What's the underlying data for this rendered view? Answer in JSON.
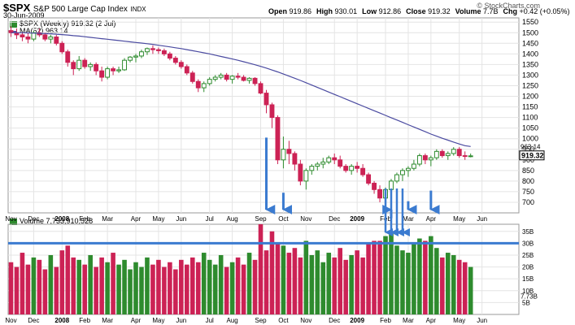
{
  "header": {
    "symbol": "$SPX",
    "name": "S&P 500 Large Cap Index",
    "exchange": "INDX",
    "date": "30-Jun-2009",
    "credit": "© StockCharts.com",
    "quote": [
      {
        "label": "Open",
        "value": "919.86"
      },
      {
        "label": "High",
        "value": "930.01"
      },
      {
        "label": "Low",
        "value": "912.86"
      },
      {
        "label": "Close",
        "value": "919.32"
      },
      {
        "label": "Volume",
        "value": "7.7B"
      },
      {
        "label": "Chg",
        "value": "+0.42 (+0.05%)"
      }
    ]
  },
  "legend": {
    "price": "$SPX (Weekly) 919.32 (2 Jul)",
    "ma": "MA(52) 963.14",
    "volume": "Volume 7,733,910,528"
  },
  "colors": {
    "up": "#2e8b2e",
    "down": "#cc2255",
    "ma": "#4a4aa0",
    "arrow": "#3b7bd0",
    "grid": "#e4e4e4"
  },
  "chart_data": {
    "type": "candlestick",
    "y_ticks": [
      700,
      750,
      800,
      850,
      900,
      950,
      1000,
      1050,
      1100,
      1150,
      1200,
      1250,
      1300,
      1350,
      1400,
      1450,
      1500,
      1550
    ],
    "ylim": [
      650,
      1570
    ],
    "x_labels": [
      "Nov",
      "Dec",
      "2008",
      "Feb",
      "Mar",
      "Apr",
      "May",
      "Jun",
      "Jul",
      "Aug",
      "Sep",
      "Oct",
      "Nov",
      "Dec",
      "2009",
      "Feb",
      "Mar",
      "Apr",
      "May",
      "Jun"
    ],
    "x_label_weeks": [
      0,
      4,
      9,
      13,
      17,
      22,
      26,
      30,
      35,
      39,
      44,
      48,
      52,
      57,
      61,
      66,
      70,
      74,
      79,
      83
    ],
    "weeks": 90,
    "price_labels": {
      "ma": "963.14",
      "close": "919.32"
    },
    "ohlc": [
      [
        1510,
        1530,
        1480,
        1500
      ],
      [
        1500,
        1520,
        1470,
        1490
      ],
      [
        1490,
        1500,
        1460,
        1480
      ],
      [
        1480,
        1500,
        1450,
        1470
      ],
      [
        1470,
        1510,
        1460,
        1500
      ],
      [
        1500,
        1520,
        1480,
        1490
      ],
      [
        1490,
        1500,
        1460,
        1470
      ],
      [
        1470,
        1490,
        1450,
        1480
      ],
      [
        1480,
        1490,
        1440,
        1450
      ],
      [
        1450,
        1460,
        1400,
        1410
      ],
      [
        1410,
        1420,
        1340,
        1360
      ],
      [
        1360,
        1370,
        1300,
        1330
      ],
      [
        1330,
        1390,
        1320,
        1370
      ],
      [
        1370,
        1380,
        1330,
        1340
      ],
      [
        1340,
        1360,
        1320,
        1350
      ],
      [
        1350,
        1360,
        1300,
        1320
      ],
      [
        1320,
        1340,
        1270,
        1290
      ],
      [
        1290,
        1340,
        1280,
        1330
      ],
      [
        1330,
        1340,
        1300,
        1320
      ],
      [
        1320,
        1340,
        1310,
        1325
      ],
      [
        1325,
        1380,
        1320,
        1370
      ],
      [
        1370,
        1390,
        1360,
        1385
      ],
      [
        1385,
        1400,
        1360,
        1390
      ],
      [
        1390,
        1420,
        1380,
        1410
      ],
      [
        1410,
        1430,
        1395,
        1425
      ],
      [
        1425,
        1440,
        1400,
        1420
      ],
      [
        1420,
        1430,
        1400,
        1415
      ],
      [
        1415,
        1425,
        1390,
        1400
      ],
      [
        1400,
        1410,
        1370,
        1380
      ],
      [
        1380,
        1390,
        1350,
        1360
      ],
      [
        1360,
        1370,
        1330,
        1340
      ],
      [
        1340,
        1350,
        1300,
        1310
      ],
      [
        1310,
        1320,
        1260,
        1270
      ],
      [
        1270,
        1280,
        1220,
        1240
      ],
      [
        1240,
        1270,
        1220,
        1260
      ],
      [
        1260,
        1290,
        1250,
        1280
      ],
      [
        1280,
        1300,
        1270,
        1290
      ],
      [
        1290,
        1310,
        1280,
        1300
      ],
      [
        1300,
        1310,
        1270,
        1280
      ],
      [
        1280,
        1300,
        1260,
        1295
      ],
      [
        1295,
        1310,
        1280,
        1290
      ],
      [
        1290,
        1300,
        1270,
        1275
      ],
      [
        1275,
        1290,
        1260,
        1285
      ],
      [
        1285,
        1290,
        1250,
        1260
      ],
      [
        1260,
        1270,
        1210,
        1215
      ],
      [
        1215,
        1230,
        1120,
        1160
      ],
      [
        1160,
        1170,
        1050,
        1100
      ],
      [
        1100,
        1110,
        880,
        900
      ],
      [
        900,
        1010,
        860,
        950
      ],
      [
        950,
        990,
        880,
        930
      ],
      [
        930,
        940,
        850,
        880
      ],
      [
        880,
        900,
        780,
        800
      ],
      [
        800,
        860,
        760,
        850
      ],
      [
        850,
        880,
        830,
        870
      ],
      [
        870,
        890,
        850,
        880
      ],
      [
        880,
        910,
        860,
        890
      ],
      [
        890,
        920,
        880,
        910
      ],
      [
        910,
        930,
        880,
        900
      ],
      [
        900,
        920,
        860,
        870
      ],
      [
        870,
        880,
        840,
        850
      ],
      [
        850,
        880,
        830,
        870
      ],
      [
        870,
        890,
        840,
        860
      ],
      [
        860,
        880,
        820,
        830
      ],
      [
        830,
        840,
        780,
        790
      ],
      [
        790,
        800,
        740,
        760
      ],
      [
        760,
        780,
        700,
        720
      ],
      [
        720,
        770,
        670,
        760
      ],
      [
        760,
        810,
        740,
        800
      ],
      [
        800,
        840,
        790,
        830
      ],
      [
        830,
        860,
        800,
        850
      ],
      [
        850,
        870,
        820,
        860
      ],
      [
        860,
        900,
        850,
        880
      ],
      [
        880,
        930,
        870,
        920
      ],
      [
        920,
        930,
        880,
        900
      ],
      [
        900,
        920,
        870,
        910
      ],
      [
        910,
        950,
        900,
        940
      ],
      [
        940,
        950,
        910,
        920
      ],
      [
        920,
        940,
        900,
        930
      ],
      [
        930,
        960,
        920,
        950
      ],
      [
        950,
        960,
        910,
        920
      ],
      [
        920,
        940,
        900,
        919
      ],
      [
        919,
        930,
        912,
        919
      ]
    ],
    "ma": [
      1500,
      1500,
      1500,
      1499,
      1498,
      1497,
      1496,
      1495,
      1493,
      1491,
      1489,
      1486,
      1484,
      1481,
      1478,
      1475,
      1472,
      1469,
      1466,
      1463,
      1460,
      1457,
      1454,
      1451,
      1448,
      1445,
      1441,
      1437,
      1433,
      1429,
      1425,
      1420,
      1415,
      1410,
      1405,
      1400,
      1394,
      1388,
      1382,
      1376,
      1370,
      1363,
      1356,
      1349,
      1341,
      1333,
      1324,
      1315,
      1305,
      1295,
      1285,
      1275,
      1264,
      1253,
      1242,
      1231,
      1220,
      1209,
      1198,
      1187,
      1176,
      1165,
      1154,
      1143,
      1132,
      1121,
      1110,
      1099,
      1088,
      1077,
      1066,
      1055,
      1044,
      1033,
      1022,
      1012,
      1002,
      993,
      984,
      975,
      967,
      963
    ],
    "volume_billions": [
      22,
      20,
      26,
      21,
      24,
      23,
      19,
      25,
      20,
      27,
      29,
      24,
      23,
      21,
      25,
      20,
      24,
      22,
      26,
      21,
      23,
      19,
      22,
      20,
      24,
      21,
      23,
      20,
      22,
      19,
      23,
      21,
      24,
      22,
      26,
      23,
      21,
      25,
      20,
      22,
      24,
      21,
      26,
      23,
      38,
      27,
      35,
      30,
      29,
      26,
      28,
      24,
      31,
      25,
      27,
      22,
      26,
      24,
      28,
      23,
      25,
      27,
      24,
      30,
      31,
      31,
      33,
      34,
      29,
      27,
      26,
      30,
      32,
      31,
      33,
      28,
      24,
      26,
      25,
      23,
      22,
      20
    ],
    "volume_ticks": [
      "35B",
      "30B",
      "25B",
      "20B",
      "15B",
      "10B",
      "5B"
    ],
    "volume_label": "7.73B",
    "volume_threshold": 30,
    "arrows_price": [
      45,
      48,
      67,
      70,
      74
    ],
    "arrows_volume": [
      66,
      67,
      68,
      69
    ]
  }
}
